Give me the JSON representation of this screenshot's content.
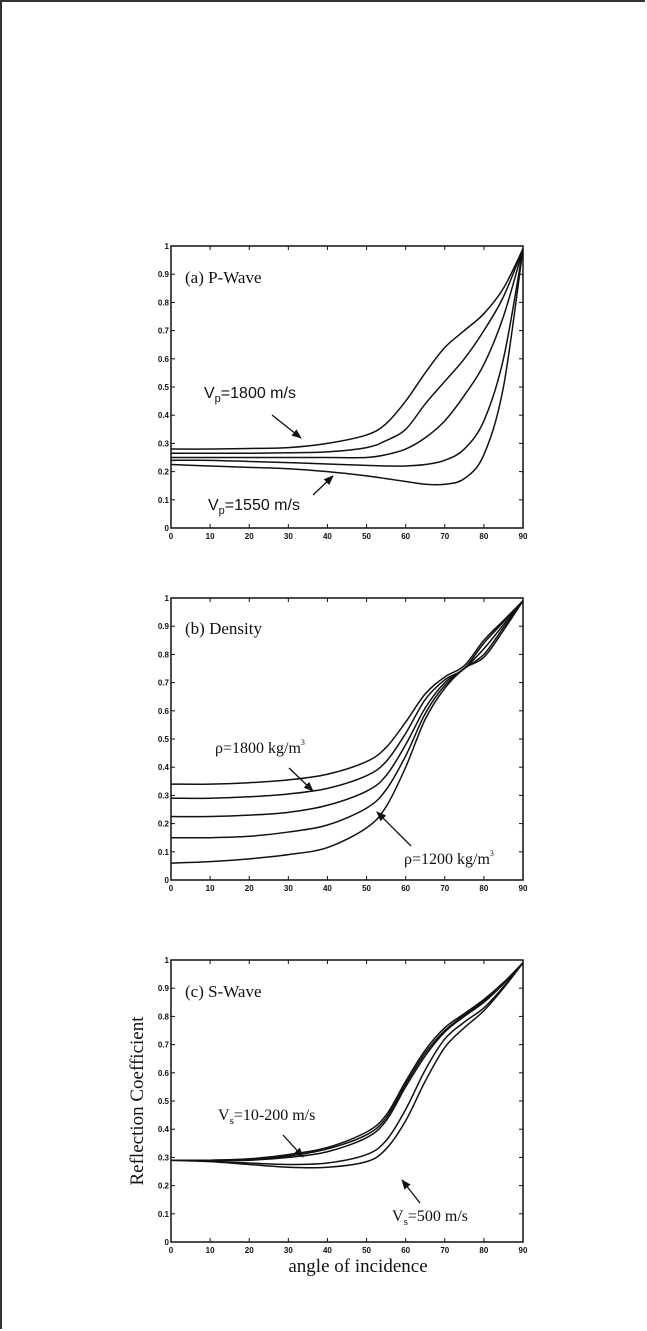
{
  "chart_data": [
    {
      "type": "line",
      "panel_label": "(a) P-Wave",
      "xlabel": "",
      "ylabel": "",
      "xlim": [
        0,
        90
      ],
      "ylim": [
        0,
        1
      ],
      "xticks": [
        "0",
        "10",
        "20",
        "30",
        "40",
        "50",
        "60",
        "70",
        "80",
        "90"
      ],
      "yticks": [
        "0",
        "0.1",
        "0.2",
        "0.3",
        "0.4",
        "0.5",
        "0.6",
        "0.7",
        "0.8",
        "0.9",
        "1"
      ],
      "grid": false,
      "series": [
        {
          "x": [
            0,
            10,
            20,
            30,
            40,
            50,
            55,
            60,
            65,
            70,
            75,
            80,
            85,
            90
          ],
          "y": [
            0.28,
            0.28,
            0.282,
            0.285,
            0.3,
            0.33,
            0.37,
            0.45,
            0.55,
            0.64,
            0.7,
            0.76,
            0.85,
            0.99
          ]
        },
        {
          "x": [
            0,
            10,
            20,
            30,
            40,
            50,
            55,
            60,
            65,
            70,
            75,
            80,
            85,
            90
          ],
          "y": [
            0.265,
            0.265,
            0.265,
            0.267,
            0.27,
            0.285,
            0.31,
            0.35,
            0.44,
            0.52,
            0.6,
            0.7,
            0.82,
            0.99
          ]
        },
        {
          "x": [
            0,
            10,
            20,
            30,
            40,
            50,
            55,
            60,
            65,
            70,
            75,
            80,
            85,
            90
          ],
          "y": [
            0.25,
            0.25,
            0.25,
            0.25,
            0.25,
            0.25,
            0.26,
            0.28,
            0.32,
            0.38,
            0.47,
            0.58,
            0.75,
            0.99
          ]
        },
        {
          "x": [
            0,
            10,
            20,
            30,
            40,
            50,
            55,
            60,
            65,
            70,
            75,
            80,
            85,
            90
          ],
          "y": [
            0.24,
            0.24,
            0.236,
            0.232,
            0.227,
            0.222,
            0.22,
            0.22,
            0.225,
            0.24,
            0.28,
            0.38,
            0.6,
            0.99
          ]
        },
        {
          "x": [
            0,
            10,
            20,
            30,
            40,
            50,
            55,
            60,
            65,
            70,
            75,
            80,
            85,
            90
          ],
          "y": [
            0.225,
            0.22,
            0.215,
            0.21,
            0.2,
            0.185,
            0.175,
            0.165,
            0.155,
            0.155,
            0.175,
            0.26,
            0.5,
            0.99
          ]
        }
      ],
      "annotations": [
        {
          "text_main": "V",
          "text_sub": "p",
          "text_rest": "=1800 m/s"
        },
        {
          "text_main": "V",
          "text_sub": "p",
          "text_rest": "=1550 m/s"
        }
      ]
    },
    {
      "type": "line",
      "panel_label": "(b) Density",
      "xlabel": "",
      "ylabel": "",
      "xlim": [
        0,
        90
      ],
      "ylim": [
        0,
        1
      ],
      "xticks": [
        "0",
        "10",
        "20",
        "30",
        "40",
        "50",
        "60",
        "70",
        "80",
        "90"
      ],
      "yticks": [
        "0",
        "0.1",
        "0.2",
        "0.3",
        "0.4",
        "0.5",
        "0.6",
        "0.7",
        "0.8",
        "0.9",
        "1"
      ],
      "grid": false,
      "series": [
        {
          "x": [
            0,
            10,
            20,
            30,
            40,
            50,
            55,
            60,
            65,
            70,
            75,
            80,
            85,
            90
          ],
          "y": [
            0.34,
            0.34,
            0.345,
            0.355,
            0.375,
            0.42,
            0.47,
            0.56,
            0.66,
            0.72,
            0.76,
            0.85,
            0.92,
            0.99
          ]
        },
        {
          "x": [
            0,
            10,
            20,
            30,
            40,
            50,
            55,
            60,
            65,
            70,
            75,
            80,
            85,
            90
          ],
          "y": [
            0.29,
            0.29,
            0.295,
            0.305,
            0.325,
            0.37,
            0.42,
            0.52,
            0.64,
            0.71,
            0.75,
            0.84,
            0.915,
            0.99
          ]
        },
        {
          "x": [
            0,
            10,
            20,
            30,
            40,
            50,
            55,
            60,
            65,
            70,
            75,
            80,
            85,
            90
          ],
          "y": [
            0.225,
            0.225,
            0.23,
            0.24,
            0.265,
            0.315,
            0.37,
            0.48,
            0.61,
            0.7,
            0.75,
            0.82,
            0.905,
            0.99
          ]
        },
        {
          "x": [
            0,
            10,
            20,
            30,
            40,
            50,
            55,
            60,
            65,
            70,
            75,
            80,
            85,
            90
          ],
          "y": [
            0.15,
            0.15,
            0.155,
            0.17,
            0.195,
            0.255,
            0.32,
            0.44,
            0.59,
            0.69,
            0.75,
            0.8,
            0.895,
            0.99
          ]
        },
        {
          "x": [
            0,
            10,
            20,
            30,
            40,
            50,
            55,
            60,
            65,
            70,
            75,
            80,
            85,
            90
          ],
          "y": [
            0.06,
            0.065,
            0.075,
            0.09,
            0.115,
            0.185,
            0.26,
            0.4,
            0.57,
            0.68,
            0.75,
            0.79,
            0.885,
            0.99
          ]
        }
      ],
      "annotations": [
        {
          "text_main": "ρ=1800 kg/m",
          "text_sup": "3"
        },
        {
          "text_main": "ρ=1200 kg/m",
          "text_sup": "3"
        }
      ]
    },
    {
      "type": "line",
      "panel_label": "(c) S-Wave",
      "xlabel": "angle of incidence",
      "ylabel": "Reflection Coefficient",
      "xlim": [
        0,
        90
      ],
      "ylim": [
        0,
        1
      ],
      "xticks": [
        "0",
        "10",
        "20",
        "30",
        "40",
        "50",
        "60",
        "70",
        "80",
        "90"
      ],
      "yticks": [
        "0",
        "0.1",
        "0.2",
        "0.3",
        "0.4",
        "0.5",
        "0.6",
        "0.7",
        "0.8",
        "0.9",
        "1"
      ],
      "grid": false,
      "series": [
        {
          "x": [
            0,
            10,
            20,
            30,
            40,
            50,
            55,
            60,
            65,
            70,
            75,
            80,
            85,
            90
          ],
          "y": [
            0.29,
            0.29,
            0.295,
            0.31,
            0.335,
            0.39,
            0.45,
            0.57,
            0.68,
            0.76,
            0.81,
            0.86,
            0.92,
            0.99
          ]
        },
        {
          "x": [
            0,
            10,
            20,
            30,
            40,
            50,
            55,
            60,
            65,
            70,
            75,
            80,
            85,
            90
          ],
          "y": [
            0.29,
            0.29,
            0.293,
            0.305,
            0.33,
            0.38,
            0.44,
            0.56,
            0.67,
            0.75,
            0.805,
            0.855,
            0.918,
            0.99
          ]
        },
        {
          "x": [
            0,
            10,
            20,
            30,
            40,
            50,
            55,
            60,
            65,
            70,
            75,
            80,
            85,
            90
          ],
          "y": [
            0.29,
            0.29,
            0.29,
            0.3,
            0.32,
            0.37,
            0.43,
            0.55,
            0.66,
            0.745,
            0.8,
            0.85,
            0.915,
            0.99
          ]
        },
        {
          "x": [
            0,
            10,
            20,
            30,
            40,
            50,
            55,
            60,
            65,
            70,
            75,
            80,
            85,
            90
          ],
          "y": [
            0.29,
            0.287,
            0.28,
            0.275,
            0.28,
            0.31,
            0.36,
            0.47,
            0.61,
            0.72,
            0.78,
            0.83,
            0.905,
            0.99
          ]
        },
        {
          "x": [
            0,
            10,
            20,
            30,
            40,
            50,
            55,
            60,
            65,
            70,
            75,
            80,
            85,
            90
          ],
          "y": [
            0.29,
            0.285,
            0.275,
            0.265,
            0.265,
            0.285,
            0.33,
            0.43,
            0.57,
            0.69,
            0.76,
            0.82,
            0.9,
            0.99
          ]
        }
      ],
      "annotations": [
        {
          "text_main": "V",
          "text_sub": "s",
          "text_rest": "=10-200 m/s"
        },
        {
          "text_main": "V",
          "text_sub": "s",
          "text_rest": "=500 m/s"
        }
      ]
    }
  ]
}
